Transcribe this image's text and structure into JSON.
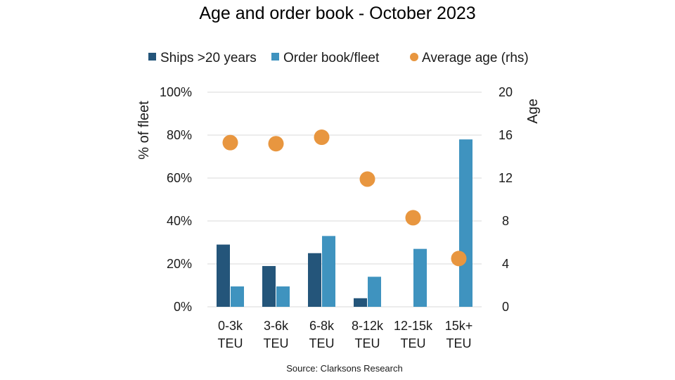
{
  "chart_data": {
    "type": "bar",
    "title": "Age and order book  - October 2023",
    "source": "Source: Clarksons Research",
    "categories": [
      [
        "0-3k",
        "TEU"
      ],
      [
        "3-6k",
        "TEU"
      ],
      [
        "6-8k",
        "TEU"
      ],
      [
        "8-12k",
        "TEU"
      ],
      [
        "12-15k",
        "TEU"
      ],
      [
        "15k+",
        "TEU"
      ]
    ],
    "ylabel": "% of fleet",
    "y2label": "Age",
    "ylim": [
      0,
      100
    ],
    "y2lim": [
      0,
      20
    ],
    "yticks": [
      "0%",
      "20%",
      "40%",
      "60%",
      "80%",
      "100%"
    ],
    "y2ticks": [
      "0",
      "4",
      "8",
      "12",
      "16",
      "20"
    ],
    "grid": true,
    "legend_position": "top",
    "series": [
      {
        "name": "Ships >20 years",
        "kind": "bar",
        "axis": "left",
        "color": "#24557a",
        "values": [
          29,
          19,
          25,
          4,
          0,
          0
        ]
      },
      {
        "name": "Order book/fleet",
        "kind": "bar",
        "axis": "left",
        "color": "#3f93bf",
        "values": [
          9.5,
          9.5,
          33,
          14,
          27,
          78
        ]
      },
      {
        "name": "Average age (rhs)",
        "kind": "scatter",
        "axis": "right",
        "color": "#e8963f",
        "values": [
          15.3,
          15.2,
          15.8,
          11.9,
          8.3,
          4.5
        ]
      }
    ]
  }
}
